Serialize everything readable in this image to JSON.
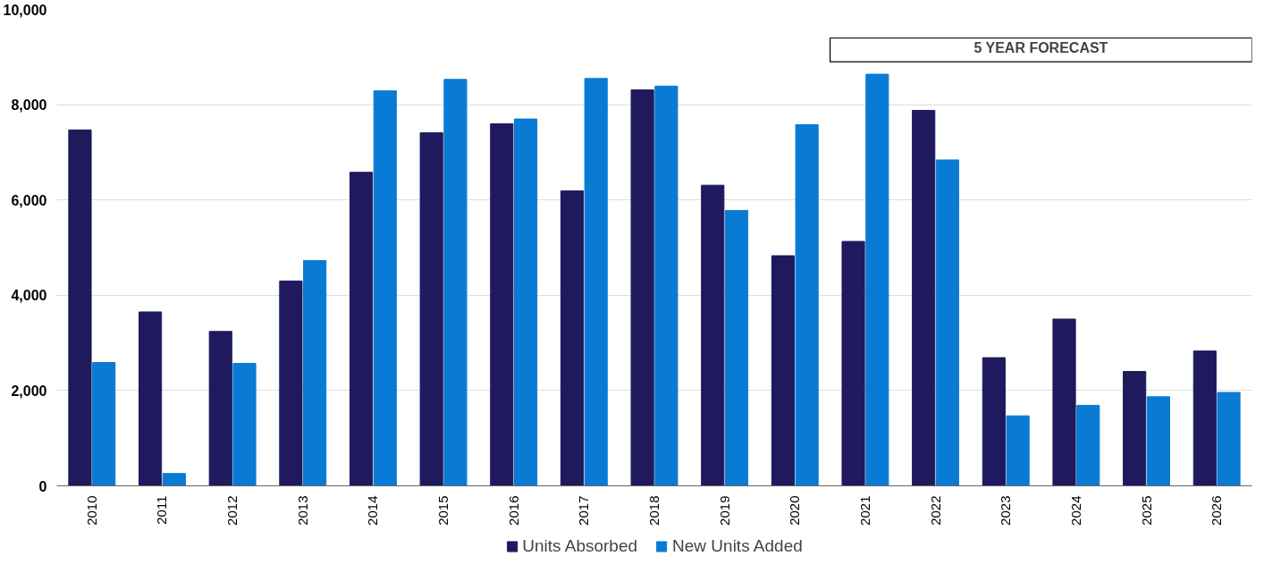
{
  "chart_data": {
    "type": "bar",
    "categories": [
      "2010",
      "2011",
      "2012",
      "2013",
      "2014",
      "2015",
      "2016",
      "2017",
      "2018",
      "2019",
      "2020",
      "2021",
      "2022",
      "2023",
      "2024",
      "2025",
      "2026"
    ],
    "series": [
      {
        "name": "Units Absorbed",
        "color": "#1f1a5e",
        "values": [
          7470,
          3650,
          3240,
          4300,
          6580,
          7410,
          7600,
          6190,
          8310,
          6310,
          4830,
          5130,
          7880,
          2690,
          3500,
          2400,
          2830
        ]
      },
      {
        "name": "New Units Added",
        "color": "#0a7bd4",
        "values": [
          2590,
          260,
          2570,
          4730,
          8290,
          8530,
          7700,
          8550,
          8390,
          5780,
          7580,
          8640,
          6840,
          1470,
          1690,
          1870,
          1960
        ]
      }
    ],
    "ylim": [
      0,
      10000
    ],
    "yticks": [
      {
        "value": 0,
        "label": "0"
      },
      {
        "value": 2000,
        "label": "2,000"
      },
      {
        "value": 4000,
        "label": "4,000"
      },
      {
        "value": 6000,
        "label": "6,000"
      },
      {
        "value": 8000,
        "label": "8,000"
      },
      {
        "value": 10000,
        "label": "10,000"
      }
    ],
    "grid": "y",
    "legend": "bottom",
    "bands": [
      {
        "axis": "x",
        "from": "2021",
        "to": "2026",
        "label": "5 YEAR FORECAST",
        "color": "#ffffff"
      }
    ]
  }
}
